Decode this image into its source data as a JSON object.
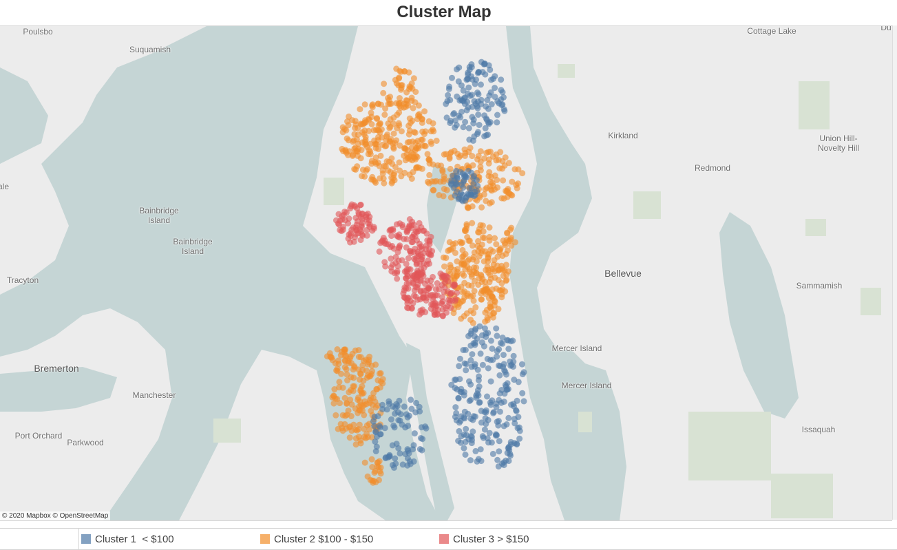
{
  "title": "Cluster Map",
  "attribution": "© 2020 Mapbox © OpenStreetMap",
  "place_labels": {
    "poulsbo": "Poulsbo",
    "suquamish": "Suquamish",
    "cottage_lake": "Cottage Lake",
    "kirkland": "Kirkland",
    "union_hill": "Union Hill-\nNovelty Hill",
    "redmond": "Redmond",
    "bainbridge_island_1": "Bainbridge\nIsland",
    "bainbridge_island_2": "Bainbridge\nIsland",
    "tracyton": "Tracyton",
    "bellevue": "Bellevue",
    "sammamish": "Sammamish",
    "mercer_island_1": "Mercer Island",
    "mercer_island_2": "Mercer Island",
    "bremerton": "Bremerton",
    "manchester": "Manchester",
    "port_orchard": "Port Orchard",
    "parkwood": "Parkwood",
    "issaquah": "Issaquah",
    "edge_left": "ale",
    "edge_right": "Du"
  },
  "legend": {
    "items": [
      {
        "label": "Cluster 1  < $100",
        "color": "#4e79a7"
      },
      {
        "label": "Cluster 2 $100 - $150",
        "color": "#f28e2b"
      },
      {
        "label": "Cluster 3 > $150",
        "color": "#e15759"
      }
    ]
  },
  "colors": {
    "water": "#c5d5d5",
    "land": "#ececec",
    "park": "#d8e2d3",
    "cluster1": "#4e79a7",
    "cluster2": "#f28e2b",
    "cluster3": "#e15759"
  }
}
